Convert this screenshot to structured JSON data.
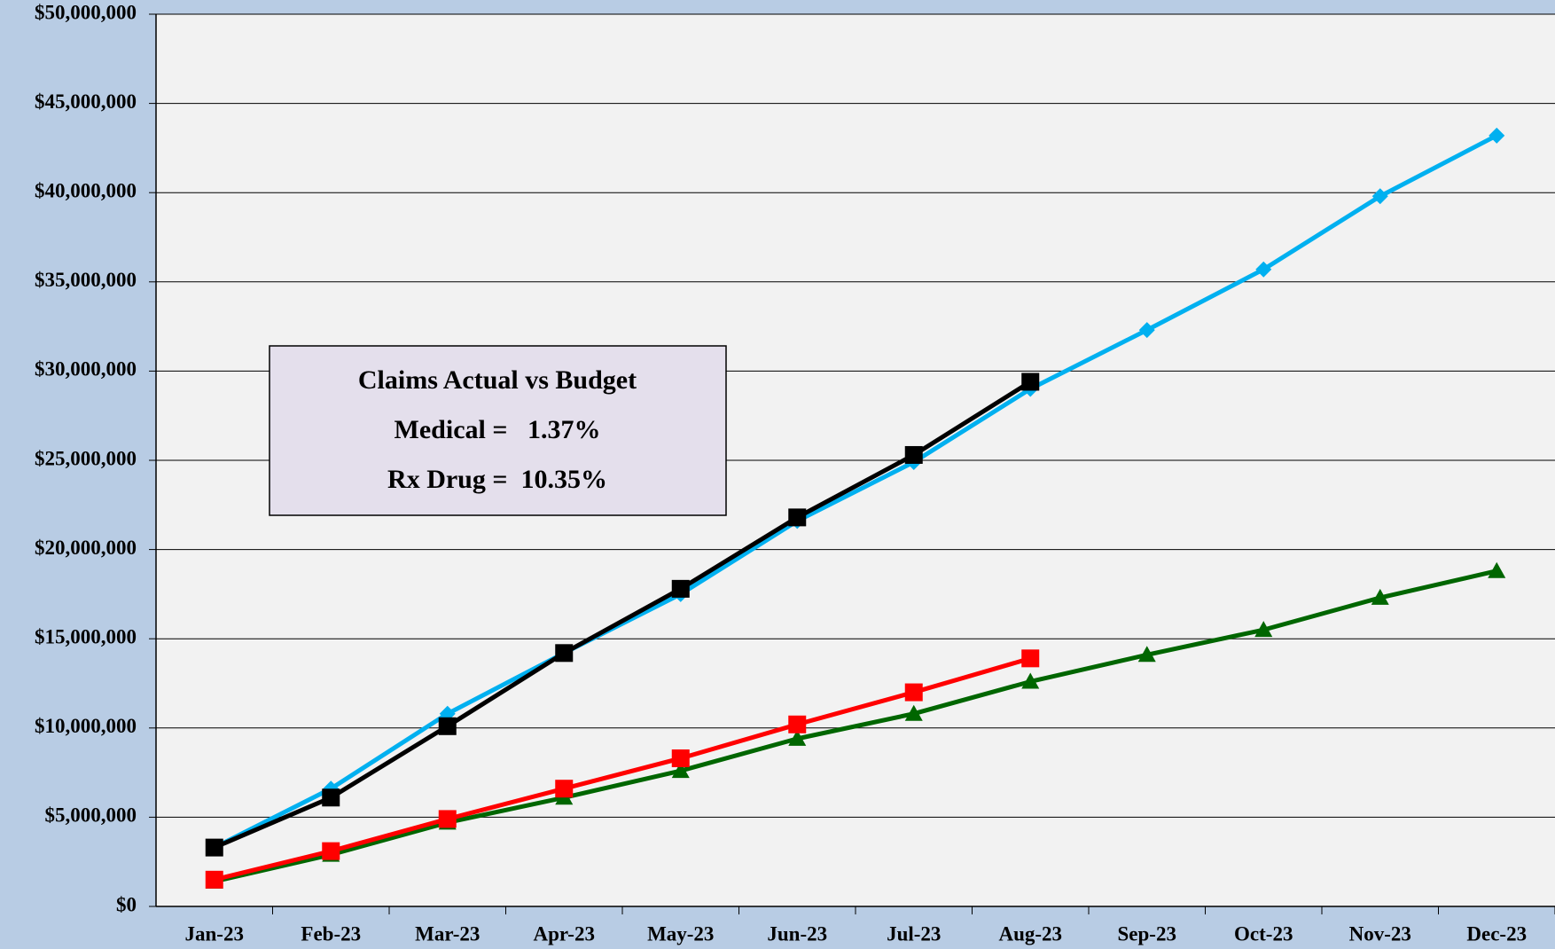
{
  "chart_data": {
    "type": "line",
    "annotation": [
      "Claims Actual vs Budget",
      "Medical =   1.37%",
      "Rx Drug =  10.35%"
    ],
    "categories": [
      "Jan-23",
      "Feb-23",
      "Mar-23",
      "Apr-23",
      "May-23",
      "Jun-23",
      "Jul-23",
      "Aug-23",
      "Sep-23",
      "Oct-23",
      "Nov-23",
      "Dec-23"
    ],
    "series": [
      {
        "color": "#00b0f0",
        "marker": "diamond",
        "values": [
          3300000,
          6600000,
          10800000,
          14200000,
          17500000,
          21600000,
          24900000,
          29000000,
          32300000,
          35700000,
          39800000,
          43200000
        ]
      },
      {
        "color": "#006600",
        "marker": "triangle",
        "values": [
          1400000,
          2900000,
          4700000,
          6100000,
          7600000,
          9400000,
          10800000,
          12600000,
          14100000,
          15500000,
          17300000,
          18800000
        ]
      },
      {
        "color": "#ff0000",
        "marker": "square",
        "values": [
          1500000,
          3100000,
          4900000,
          6600000,
          8300000,
          10200000,
          12000000,
          13900000,
          null,
          null,
          null,
          null
        ]
      },
      {
        "color": "#000000",
        "marker": "square",
        "values": [
          3300000,
          6100000,
          10100000,
          14200000,
          17800000,
          21800000,
          25300000,
          29400000,
          null,
          null,
          null,
          null
        ]
      }
    ],
    "ylim": [
      0,
      50000000
    ],
    "yticks": [
      {
        "value": 0,
        "label": "$0"
      },
      {
        "value": 5000000,
        "label": "$5,000,000"
      },
      {
        "value": 10000000,
        "label": "$10,000,000"
      },
      {
        "value": 15000000,
        "label": "$15,000,000"
      },
      {
        "value": 20000000,
        "label": "$20,000,000"
      },
      {
        "value": 25000000,
        "label": "$25,000,000"
      },
      {
        "value": 30000000,
        "label": "$30,000,000"
      },
      {
        "value": 35000000,
        "label": "$35,000,000"
      },
      {
        "value": 40000000,
        "label": "$40,000,000"
      },
      {
        "value": 45000000,
        "label": "$45,000,000"
      },
      {
        "value": 50000000,
        "label": "$50,000,000"
      }
    ],
    "grid": true
  }
}
